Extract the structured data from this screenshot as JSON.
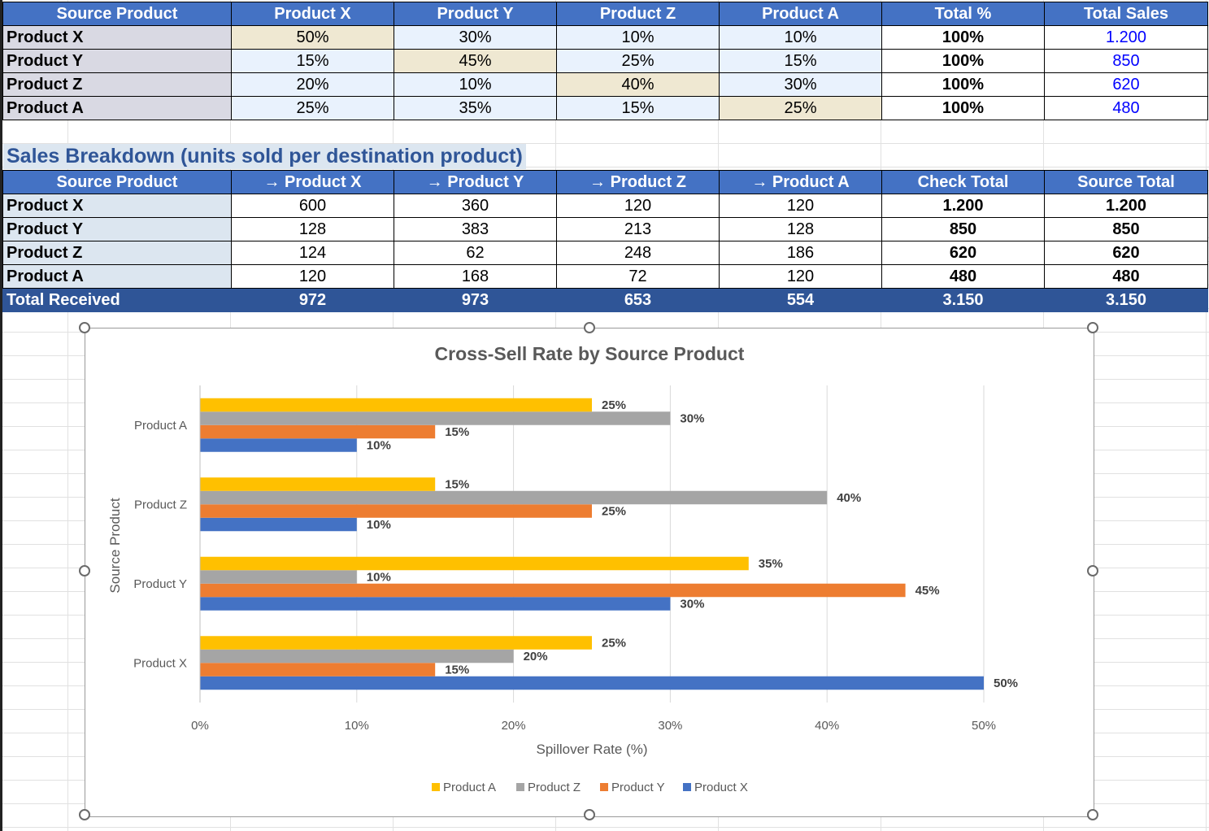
{
  "table1": {
    "headers": [
      "Source Product",
      "Product X",
      "Product Y",
      "Product Z",
      "Product A",
      "Total %",
      "Total Sales"
    ],
    "rows": [
      {
        "label": "Product X",
        "cells": [
          "50%",
          "30%",
          "10%",
          "10%"
        ],
        "total": "100%",
        "sales": "1.200"
      },
      {
        "label": "Product Y",
        "cells": [
          "15%",
          "45%",
          "25%",
          "15%"
        ],
        "total": "100%",
        "sales": "850"
      },
      {
        "label": "Product Z",
        "cells": [
          "20%",
          "10%",
          "40%",
          "30%"
        ],
        "total": "100%",
        "sales": "620"
      },
      {
        "label": "Product A",
        "cells": [
          "25%",
          "35%",
          "15%",
          "25%"
        ],
        "total": "100%",
        "sales": "480"
      }
    ]
  },
  "section_title": "Sales Breakdown (units sold per destination product)",
  "table2": {
    "headers": [
      "Source Product",
      "→ Product X",
      "→ Product Y",
      "→ Product Z",
      "→ Product A",
      "Check Total",
      "Source Total"
    ],
    "rows": [
      {
        "label": "Product X",
        "cells": [
          "600",
          "360",
          "120",
          "120"
        ],
        "check": "1.200",
        "source": "1.200"
      },
      {
        "label": "Product Y",
        "cells": [
          "128",
          "383",
          "213",
          "128"
        ],
        "check": "850",
        "source": "850"
      },
      {
        "label": "Product Z",
        "cells": [
          "124",
          "62",
          "248",
          "186"
        ],
        "check": "620",
        "source": "620"
      },
      {
        "label": "Product A",
        "cells": [
          "120",
          "168",
          "72",
          "120"
        ],
        "check": "480",
        "source": "480"
      }
    ],
    "total_row": {
      "label": "Total Received",
      "cells": [
        "972",
        "973",
        "653",
        "554"
      ],
      "check": "3.150",
      "source": "3.150"
    }
  },
  "chart_data": {
    "type": "bar",
    "orientation": "horizontal",
    "title": "Cross-Sell Rate by Source Product",
    "xlabel": "Spillover Rate (%)",
    "ylabel": "Source Product",
    "categories": [
      "Product X",
      "Product Y",
      "Product Z",
      "Product A"
    ],
    "series": [
      {
        "name": "Product X",
        "color": "#4472c4",
        "values": [
          50,
          30,
          10,
          10
        ]
      },
      {
        "name": "Product Y",
        "color": "#ed7d31",
        "values": [
          15,
          45,
          25,
          15
        ]
      },
      {
        "name": "Product Z",
        "color": "#a5a5a5",
        "values": [
          20,
          10,
          40,
          30
        ]
      },
      {
        "name": "Product A",
        "color": "#ffc000",
        "values": [
          25,
          35,
          15,
          25
        ]
      }
    ],
    "xlim": [
      0,
      50
    ],
    "xticks": [
      "0%",
      "10%",
      "20%",
      "30%",
      "40%",
      "50%"
    ],
    "grid": true,
    "legend": "bottom",
    "legend_order": [
      "Product A",
      "Product Z",
      "Product Y",
      "Product X"
    ]
  }
}
